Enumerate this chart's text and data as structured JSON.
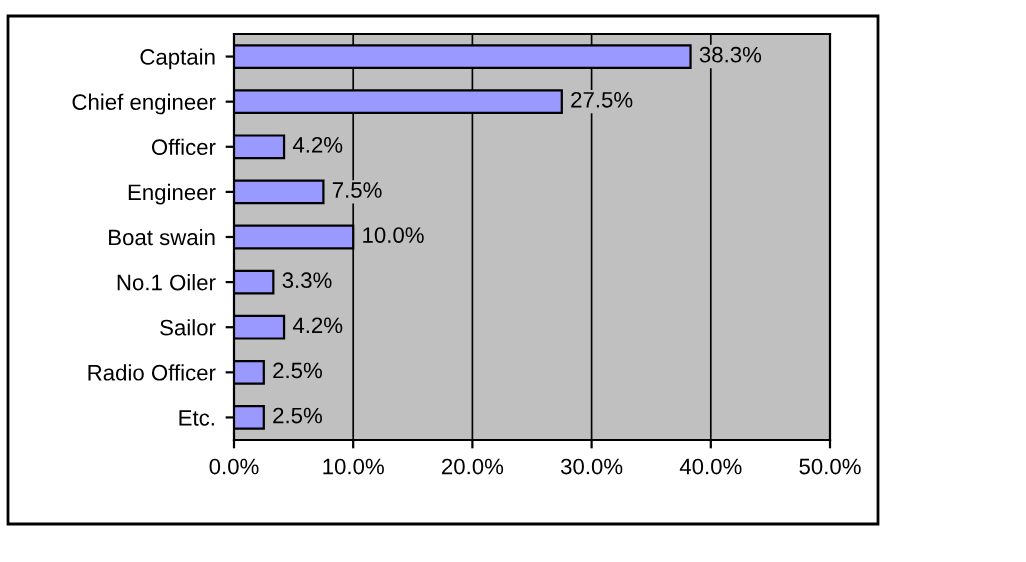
{
  "chart_data": {
    "type": "bar",
    "orientation": "horizontal",
    "categories": [
      "Captain",
      "Chief engineer",
      "Officer",
      "Engineer",
      "Boat swain",
      "No.1 Oiler",
      "Sailor",
      "Radio Officer",
      "Etc."
    ],
    "values": [
      38.3,
      27.5,
      4.2,
      7.5,
      10.0,
      3.3,
      4.2,
      2.5,
      2.5
    ],
    "value_labels": [
      "38.3%",
      "27.5%",
      "4.2%",
      "7.5%",
      "10.0%",
      "3.3%",
      "4.2%",
      "2.5%",
      "2.5%"
    ],
    "color": "#9999ff",
    "xlim": [
      0,
      50
    ],
    "xticks": [
      {
        "value": 0,
        "label": "0.0%"
      },
      {
        "value": 10,
        "label": "10.0%"
      },
      {
        "value": 20,
        "label": "20.0%"
      },
      {
        "value": 30,
        "label": "30.0%"
      },
      {
        "value": 40,
        "label": "40.0%"
      },
      {
        "value": 50,
        "label": "50.0%"
      }
    ],
    "grid": "x"
  }
}
